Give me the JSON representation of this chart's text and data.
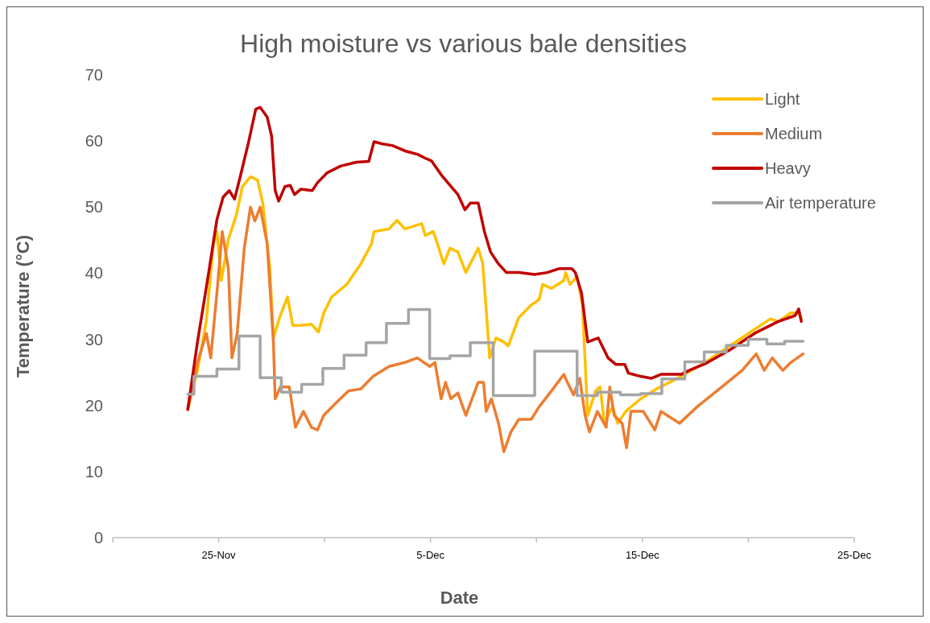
{
  "chart_data": {
    "type": "line",
    "title": "High moisture vs various bale densities",
    "xlabel": "Date",
    "ylabel": "Temperature (°C)",
    "xlim": [
      "--11-20",
      "--12-25"
    ],
    "xticks": [
      {
        "value": "--11-20",
        "label": null
      },
      {
        "value": "--11-25",
        "label": "25-Nov"
      },
      {
        "value": "--11-30",
        "label": null
      },
      {
        "value": "--12-05",
        "label": "5-Dec"
      },
      {
        "value": "--12-10",
        "label": null
      },
      {
        "value": "--12-15",
        "label": "15-Dec"
      },
      {
        "value": "--12-20",
        "label": null
      },
      {
        "value": "--12-25",
        "label": "25-Dec"
      }
    ],
    "ylim": [
      0,
      70
    ],
    "yticks": [
      0,
      10,
      20,
      30,
      40,
      50,
      60,
      70
    ],
    "grid": false,
    "legend": "top right",
    "line_style": "solid",
    "marker": "none",
    "series": [
      {
        "name": "Light",
        "color": "#ffc000",
        "x": [
          "--11-23T13:00",
          "--11-24T00:00",
          "--11-24T10:00",
          "--11-24T18:00",
          "--11-24T22:00",
          "--11-25T03:00",
          "--11-25T11:00",
          "--11-25T20:00",
          "--11-26T03:00",
          "--11-26T12:00",
          "--11-26T20:00",
          "--11-27T02:00",
          "--11-27T10:00",
          "--11-27T14:00",
          "--11-27T21:00",
          "--11-28T06:00",
          "--11-28T12:00",
          "--11-28T21:00",
          "--11-29T09:00",
          "--11-29T17:00",
          "--11-29T23:00",
          "--11-30T08:00",
          "--12-01T01:00",
          "--12-01T17:00",
          "--12-02T05:00",
          "--12-02T08:00",
          "--12-03T01:00",
          "--12-03T10:00",
          "--12-03T19:00",
          "--12-04T14:00",
          "--12-04T18:00",
          "--12-05T03:00",
          "--12-05T08:00",
          "--12-05T15:00",
          "--12-05T22:00",
          "--12-06T07:00",
          "--12-06T16:00",
          "--12-07T06:00",
          "--12-07T11:00",
          "--12-07T15:00",
          "--12-07T19:00",
          "--12-08T02:00",
          "--12-08T11:00",
          "--12-08T16:00",
          "--12-09T04:00",
          "--12-09T18:00",
          "--12-10T03:00",
          "--12-10T07:00",
          "--12-10T17:00",
          "--12-11T07:00",
          "--12-11T09:00",
          "--12-11T14:00",
          "--12-11T22:00",
          "--12-12T04:00",
          "--12-12T10:00",
          "--12-12T19:00",
          "--12-13T00:00",
          "--12-13T05:00",
          "--12-13T14:00",
          "--12-13T20:00",
          "--12-14T05:00",
          "--12-14T22:00",
          "--12-15T16:00",
          "--12-16T20:00",
          "--12-17T23:00",
          "--12-19T03:00",
          "--12-20T07:00",
          "--12-21T01:00",
          "--12-21T10:00",
          "--12-22T00:00",
          "--12-22T09:00",
          "--12-22T12:00"
        ],
        "values": [
          19.4,
          25.3,
          32.7,
          44.4,
          46.3,
          38.9,
          45.1,
          48.8,
          53.1,
          54.6,
          54.1,
          50.6,
          40.7,
          30.2,
          33.3,
          36.4,
          32.1,
          32.1,
          32.3,
          31.1,
          34.0,
          36.4,
          38.3,
          41.4,
          44.4,
          46.3,
          46.7,
          48.0,
          46.7,
          47.5,
          45.7,
          46.3,
          44.4,
          41.4,
          43.8,
          43.2,
          40.1,
          43.8,
          41.5,
          34.6,
          27.2,
          30.2,
          29.6,
          29.0,
          33.3,
          35.2,
          36.0,
          38.3,
          37.7,
          38.9,
          40.1,
          38.3,
          39.5,
          35.2,
          18.5,
          22.2,
          22.8,
          17.3,
          19.8,
          17.3,
          19.1,
          21.0,
          22.5,
          24.4,
          26.5,
          29.0,
          31.5,
          33.1,
          32.7,
          34.0,
          34.0,
          33.1
        ]
      },
      {
        "name": "Medium",
        "color": "#ed7d31",
        "x": [
          "--11-23T13:00",
          "--11-24T00:00",
          "--11-24T10:00",
          "--11-24T15:00",
          "--11-24T22:00",
          "--11-25T04:00",
          "--11-25T11:00",
          "--11-25T15:00",
          "--11-25T21:00",
          "--11-26T05:00",
          "--11-26T12:00",
          "--11-26T17:00",
          "--11-26T23:00",
          "--11-27T07:00",
          "--11-27T14:00",
          "--11-27T16:00",
          "--11-27T22:00",
          "--11-28T08:00",
          "--11-28T15:00",
          "--11-29T00:00",
          "--11-29T09:00",
          "--11-29T16:00",
          "--11-29T23:00",
          "--11-30T13:00",
          "--12-01T03:00",
          "--12-01T17:00",
          "--12-02T07:00",
          "--12-03T01:00",
          "--12-03T19:00",
          "--12-04T09:00",
          "--12-04T23:00",
          "--12-05T05:00",
          "--12-05T12:00",
          "--12-05T17:00",
          "--12-05T23:00",
          "--12-06T07:00",
          "--12-06T16:00",
          "--12-07T06:00",
          "--12-07T12:00",
          "--12-07T15:00",
          "--12-07T21:00",
          "--12-08T05:00",
          "--12-08T11:00",
          "--12-08T19:00",
          "--12-09T04:00",
          "--12-09T18:00",
          "--12-10T03:00",
          "--12-10T17:00",
          "--12-11T07:00",
          "--12-11T11:00",
          "--12-11T18:00",
          "--12-12T01:00",
          "--12-12T07:00",
          "--12-12T12:00",
          "--12-12T21:00",
          "--12-13T07:00",
          "--12-13T11:00",
          "--12-13T16:00",
          "--12-14T01:00",
          "--12-14T06:00",
          "--12-14T11:00",
          "--12-15T01:00",
          "--12-15T14:00",
          "--12-15T21:00",
          "--12-16T04:00",
          "--12-16T18:00",
          "--12-17T14:00",
          "--12-18T18:00",
          "--12-19T17:00",
          "--12-20T09:00",
          "--12-20T18:00",
          "--12-21T03:00",
          "--12-21T15:00",
          "--12-22T00:00",
          "--12-22T14:00"
        ],
        "values": [
          19.4,
          26.5,
          30.9,
          27.2,
          37.0,
          46.3,
          40.7,
          27.2,
          30.9,
          43.8,
          50.0,
          47.9,
          50.0,
          44.4,
          29.6,
          21.0,
          22.8,
          22.8,
          16.7,
          19.1,
          16.7,
          16.3,
          18.5,
          20.4,
          22.2,
          22.5,
          24.4,
          25.9,
          26.5,
          27.2,
          25.9,
          26.5,
          21.0,
          23.5,
          21.0,
          21.9,
          18.5,
          23.5,
          23.5,
          19.1,
          21.0,
          17.3,
          13.0,
          16.0,
          17.9,
          17.9,
          19.8,
          22.2,
          24.7,
          23.5,
          21.6,
          24.1,
          18.5,
          16.0,
          19.1,
          16.7,
          22.8,
          18.5,
          17.3,
          13.6,
          19.1,
          19.1,
          16.3,
          19.1,
          18.5,
          17.3,
          19.8,
          22.8,
          25.3,
          27.8,
          25.3,
          27.2,
          25.3,
          26.5,
          27.8
        ]
      },
      {
        "name": "Heavy",
        "color": "#c00000",
        "x": [
          "--11-23T13:00",
          "--11-24T00:00",
          "--11-24T12:00",
          "--11-24T22:00",
          "--11-25T05:00",
          "--11-25T12:00",
          "--11-25T18:00",
          "--11-26T01:00",
          "--11-26T10:00",
          "--11-26T18:00",
          "--11-26T23:00",
          "--11-27T07:00",
          "--11-27T12:00",
          "--11-27T16:00",
          "--11-27T20:00",
          "--11-28T03:00",
          "--11-28T09:00",
          "--11-28T14:00",
          "--11-28T21:00",
          "--11-29T10:00",
          "--11-29T16:00",
          "--11-30T03:00",
          "--11-30T18:00",
          "--12-01T12:00",
          "--12-02T02:00",
          "--12-02T08:00",
          "--12-02T16:00",
          "--12-03T05:00",
          "--12-03T19:00",
          "--12-04T09:00",
          "--12-04T18:00",
          "--12-05T01:00",
          "--12-05T12:00",
          "--12-05T22:00",
          "--12-06T07:00",
          "--12-06T15:00",
          "--12-06T21:00",
          "--12-07T06:00",
          "--12-07T13:00",
          "--12-07T20:00",
          "--12-08T05:00",
          "--12-08T14:00",
          "--12-09T04:00",
          "--12-09T22:00",
          "--12-10T12:00",
          "--12-11T02:00",
          "--12-11T16:00",
          "--12-11T20:00",
          "--12-12T03:00",
          "--12-12T10:00",
          "--12-12T22:00",
          "--12-13T09:00",
          "--12-13T18:00",
          "--12-14T04:00",
          "--12-14T08:00",
          "--12-14T22:00",
          "--12-15T10:00",
          "--12-15T21:00",
          "--12-16T20:00",
          "--12-17T05:00",
          "--12-17T23:00",
          "--12-19T03:00",
          "--12-20T07:00",
          "--12-21T10:00",
          "--12-22T05:00",
          "--12-22T09:00",
          "--12-22T12:00"
        ],
        "values": [
          19.4,
          29.6,
          39.5,
          48.1,
          51.5,
          52.5,
          51.2,
          54.9,
          59.9,
          64.8,
          65.1,
          63.6,
          60.7,
          52.5,
          50.9,
          53.1,
          53.3,
          51.9,
          52.7,
          52.5,
          53.7,
          55.2,
          56.2,
          56.8,
          56.9,
          59.9,
          59.6,
          59.3,
          58.5,
          58.0,
          57.4,
          57.0,
          54.9,
          53.3,
          51.9,
          49.6,
          50.6,
          50.6,
          46.3,
          43.2,
          41.4,
          40.1,
          40.1,
          39.8,
          40.1,
          40.7,
          40.7,
          40.1,
          37.0,
          29.6,
          30.2,
          27.2,
          26.2,
          26.2,
          24.9,
          24.4,
          24.1,
          24.7,
          24.7,
          25.3,
          26.3,
          28.4,
          30.9,
          32.7,
          33.6,
          34.6,
          32.7
        ]
      },
      {
        "name": "Air temperature",
        "color": "#a5a5a5",
        "type": "step",
        "x": [
          "--11-23T13:00",
          "--11-23T20:00",
          "--11-24T22:00",
          "--11-25T23:00",
          "--11-26T23:00",
          "--11-27T23:00",
          "--11-28T22:00",
          "--11-29T22:00",
          "--11-30T22:00",
          "--12-01T23:00",
          "--12-02T22:00",
          "--12-03T23:00",
          "--12-04T23:00",
          "--12-05T22:00",
          "--12-06T21:00",
          "--12-07T23:00",
          "--12-09T22:00",
          "--12-11T22:00",
          "--12-12T21:00",
          "--12-13T23:00",
          "--12-14T22:00",
          "--12-15T22:00",
          "--12-17T00:00",
          "--12-17T22:00",
          "--12-18T23:00",
          "--12-20T00:00",
          "--12-20T21:00",
          "--12-21T17:00",
          "--12-22T14:00"
        ],
        "values": [
          21.7,
          24.4,
          25.5,
          30.5,
          24.2,
          22.0,
          23.2,
          25.6,
          27.6,
          29.5,
          32.4,
          34.5,
          27.1,
          27.5,
          29.5,
          21.5,
          28.2,
          21.5,
          22.0,
          21.6,
          21.8,
          24.0,
          26.6,
          28.1,
          29.1,
          30.0,
          29.3,
          29.7,
          29.7
        ]
      }
    ]
  }
}
